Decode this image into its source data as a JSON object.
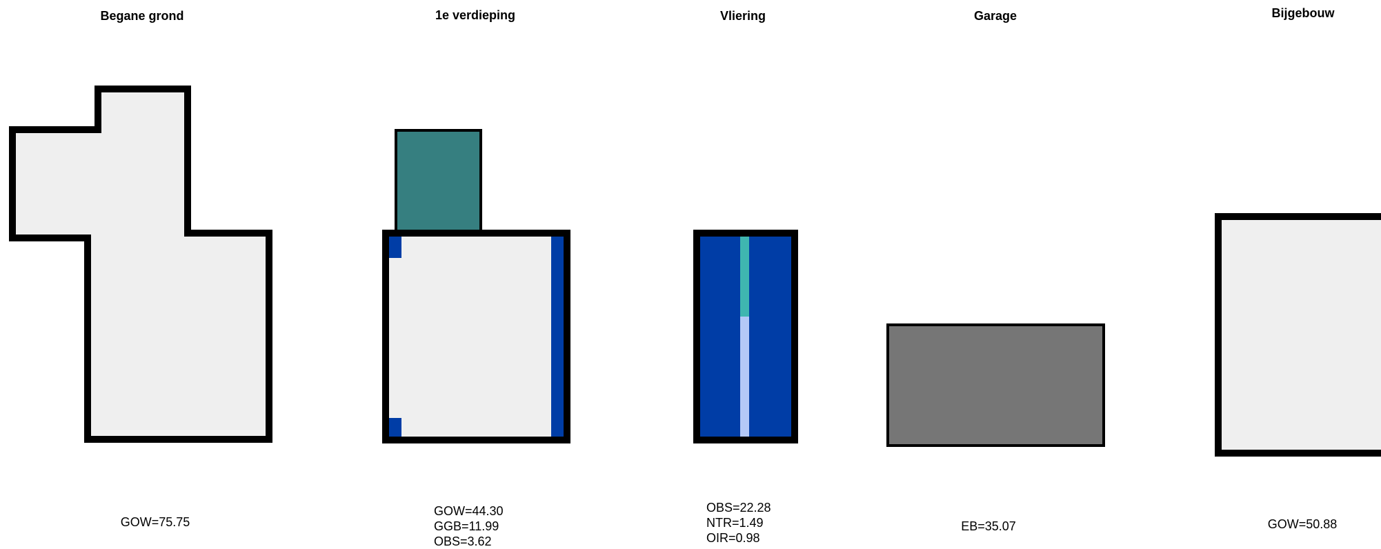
{
  "floors": [
    {
      "id": "begane-grond",
      "title": "Begane grond",
      "stats": [
        "GOW=75.75"
      ]
    },
    {
      "id": "1e-verdieping",
      "title": "1e verdieping",
      "stats": [
        "GOW=44.30",
        "GGB=11.99",
        "OBS=3.62"
      ]
    },
    {
      "id": "vliering",
      "title": "Vliering",
      "stats": [
        "OBS=22.28",
        "NTR=1.49",
        "OIR=0.98"
      ]
    },
    {
      "id": "garage",
      "title": "Garage",
      "stats": [
        "EB=35.07"
      ]
    },
    {
      "id": "bijgebouw",
      "title": "Bijgebouw",
      "stats": [
        "GOW=50.88"
      ]
    }
  ],
  "colors": {
    "wall": "#000000",
    "floor_light": "#efefef",
    "teal": "#367f80",
    "blue": "#003da6",
    "turquoise": "#3fb6b0",
    "light_blue": "#b3c8f7",
    "grey": "#767676"
  }
}
